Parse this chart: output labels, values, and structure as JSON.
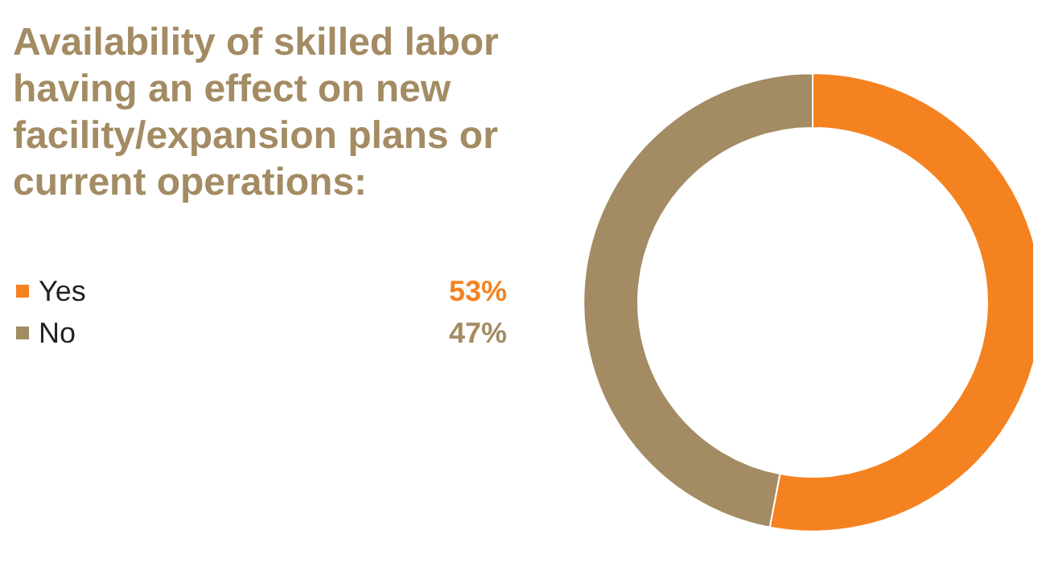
{
  "chart_data": {
    "type": "donut",
    "title": "Availability of skilled labor having an effect on new facility/expansion plans or current operations:",
    "categories": [
      "Yes",
      "No"
    ],
    "values": [
      53,
      47
    ],
    "colors": [
      "#f58220",
      "#a38b63"
    ],
    "value_labels": [
      "53%",
      "47%"
    ],
    "legend": "left"
  }
}
